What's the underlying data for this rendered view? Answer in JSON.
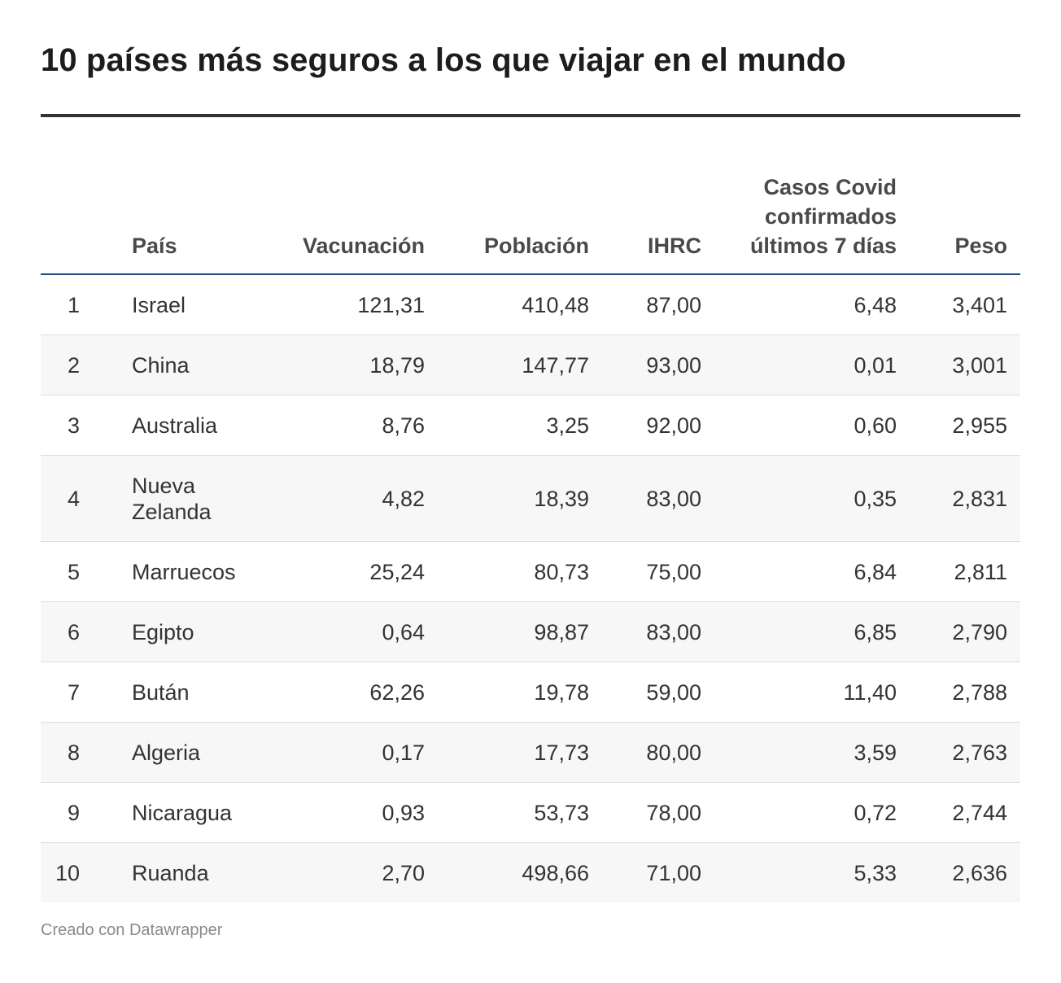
{
  "title": "10 países más seguros a los que viajar en el mundo",
  "columns": {
    "rank": "",
    "pais": "País",
    "vacunacion": "Vacunación",
    "poblacion": "Población",
    "ihrc": "IHRC",
    "casos": "Casos Covid confirmados últimos 7 días",
    "peso": "Peso"
  },
  "rows": [
    {
      "rank": "1",
      "pais": "Israel",
      "vacunacion": "121,31",
      "poblacion": "410,48",
      "ihrc": "87,00",
      "casos": "6,48",
      "peso": "3,401"
    },
    {
      "rank": "2",
      "pais": "China",
      "vacunacion": "18,79",
      "poblacion": "147,77",
      "ihrc": "93,00",
      "casos": "0,01",
      "peso": "3,001"
    },
    {
      "rank": "3",
      "pais": "Australia",
      "vacunacion": "8,76",
      "poblacion": "3,25",
      "ihrc": "92,00",
      "casos": "0,60",
      "peso": "2,955"
    },
    {
      "rank": "4",
      "pais": "Nueva Zelanda",
      "vacunacion": "4,82",
      "poblacion": "18,39",
      "ihrc": "83,00",
      "casos": "0,35",
      "peso": "2,831"
    },
    {
      "rank": "5",
      "pais": "Marruecos",
      "vacunacion": "25,24",
      "poblacion": "80,73",
      "ihrc": "75,00",
      "casos": "6,84",
      "peso": "2,811"
    },
    {
      "rank": "6",
      "pais": "Egipto",
      "vacunacion": "0,64",
      "poblacion": "98,87",
      "ihrc": "83,00",
      "casos": "6,85",
      "peso": "2,790"
    },
    {
      "rank": "7",
      "pais": "Bután",
      "vacunacion": "62,26",
      "poblacion": "19,78",
      "ihrc": "59,00",
      "casos": "11,40",
      "peso": "2,788"
    },
    {
      "rank": "8",
      "pais": "Algeria",
      "vacunacion": "0,17",
      "poblacion": "17,73",
      "ihrc": "80,00",
      "casos": "3,59",
      "peso": "2,763"
    },
    {
      "rank": "9",
      "pais": "Nicaragua",
      "vacunacion": "0,93",
      "poblacion": "53,73",
      "ihrc": "78,00",
      "casos": "0,72",
      "peso": "2,744"
    },
    {
      "rank": "10",
      "pais": "Ruanda",
      "vacunacion": "2,70",
      "poblacion": "498,66",
      "ihrc": "71,00",
      "casos": "5,33",
      "peso": "2,636"
    }
  ],
  "footer": "Creado con Datawrapper",
  "colors": {
    "header_rule": "#333333",
    "header_underline": "#1d4a7a",
    "alt_row": "#f7f7f7"
  }
}
